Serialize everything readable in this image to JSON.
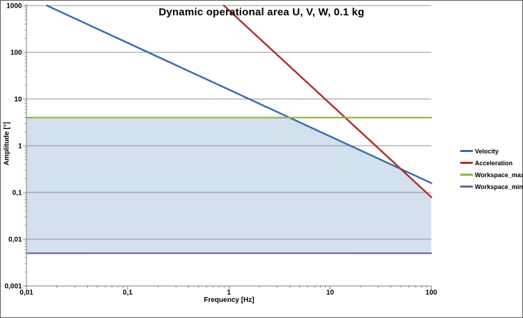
{
  "chart_data": {
    "type": "line",
    "title": "Dynamic operational area U, V, W, 0.1 kg",
    "xlabel": "Frequency [Hz]",
    "ylabel": "Amplitude [°]",
    "x_axis": {
      "scale": "log",
      "min": 0.01,
      "max": 100,
      "ticks": [
        {
          "value": 0.01,
          "label": "0,01"
        },
        {
          "value": 0.1,
          "label": "0,1"
        },
        {
          "value": 1,
          "label": "1"
        },
        {
          "value": 10,
          "label": "10"
        },
        {
          "value": 100,
          "label": "100"
        }
      ]
    },
    "y_axis": {
      "scale": "log",
      "min": 0.001,
      "max": 1000,
      "ticks": [
        {
          "value": 1000,
          "label": "1000"
        },
        {
          "value": 100,
          "label": "100"
        },
        {
          "value": 10,
          "label": "10"
        },
        {
          "value": 1,
          "label": "1"
        },
        {
          "value": 0.1,
          "label": "0,1"
        },
        {
          "value": 0.01,
          "label": "0,01"
        },
        {
          "value": 0.001,
          "label": "0,001"
        }
      ]
    },
    "grid": "horizontal-major-only",
    "legend_position": "right",
    "series": [
      {
        "name": "Velocity",
        "color": "#3A6CB0",
        "points": [
          [
            0.0159,
            1000
          ],
          [
            100,
            0.159
          ]
        ]
      },
      {
        "name": "Acceleration",
        "color": "#B03030",
        "points": [
          [
            0.892,
            1000
          ],
          [
            100,
            0.0796
          ]
        ]
      },
      {
        "name": "Workspace_max",
        "color": "#95B24B",
        "points": [
          [
            0.01,
            4
          ],
          [
            100,
            4
          ]
        ]
      },
      {
        "name": "Workspace_min",
        "color": "#7A5CA5",
        "points": [
          [
            0.01,
            0.005
          ],
          [
            100,
            0.005
          ]
        ]
      }
    ],
    "operational_area": {
      "fill": "#D3E0EE",
      "points": [
        [
          0.01,
          4
        ],
        [
          3.98,
          4
        ],
        [
          50,
          0.318
        ],
        [
          100,
          0.0796
        ],
        [
          100,
          0.005
        ],
        [
          0.01,
          0.005
        ]
      ]
    }
  },
  "colors": {
    "gridline": "#909090",
    "axis": "#7F7F7F",
    "background": "#FFFFFF"
  }
}
